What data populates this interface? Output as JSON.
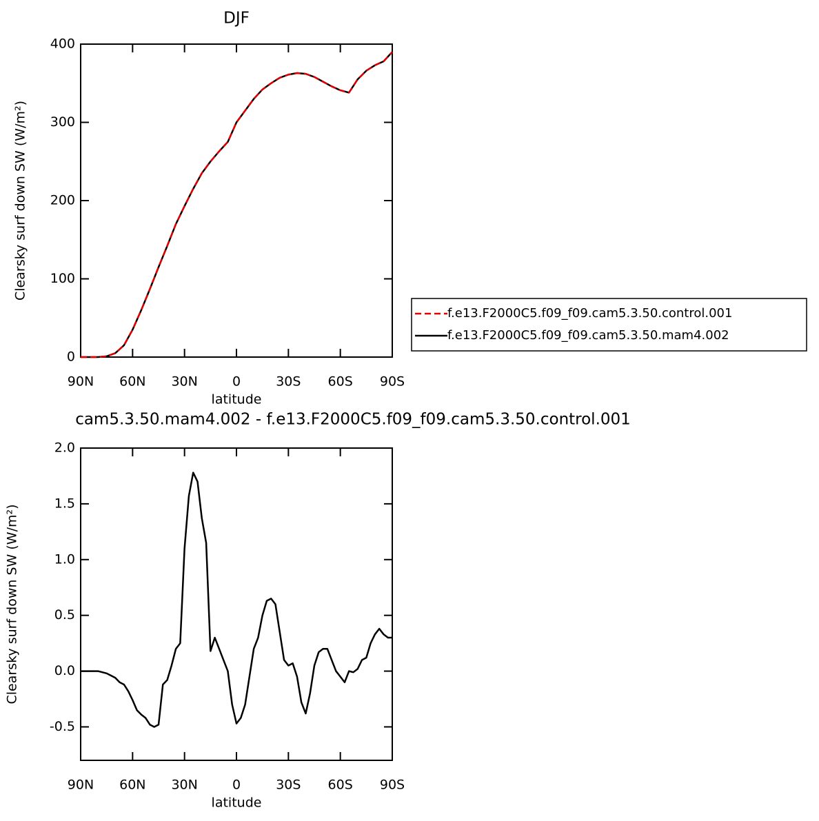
{
  "chart_data": [
    {
      "type": "line",
      "title": "DJF",
      "xlabel": "latitude",
      "ylabel": "Clearsky surf down SW (W/m²)",
      "x": [
        90,
        85,
        80,
        75,
        70,
        65,
        60,
        55,
        50,
        45,
        40,
        35,
        30,
        25,
        20,
        15,
        10,
        5,
        0,
        -5,
        -10,
        -15,
        -20,
        -25,
        -30,
        -35,
        -40,
        -45,
        -50,
        -55,
        -60,
        -65,
        -70,
        -75,
        -80,
        -85,
        -90
      ],
      "xlim": [
        90,
        -90
      ],
      "xticks": [
        {
          "value": 90,
          "label": "90N"
        },
        {
          "value": 60,
          "label": "60N"
        },
        {
          "value": 30,
          "label": "30N"
        },
        0,
        {
          "value": -30,
          "label": "30S"
        },
        {
          "value": -60,
          "label": "60S"
        },
        {
          "value": -90,
          "label": "90S"
        }
      ],
      "ylim": [
        0,
        400
      ],
      "yticks": [
        0,
        100,
        200,
        300,
        400
      ],
      "legend": "right",
      "series": [
        {
          "name": "f.e13.F2000C5.f09_f09.cam5.3.50.control.001",
          "color": "#e00000",
          "linestyle": "dashed",
          "values": [
            0,
            0,
            0,
            1,
            5,
            15,
            35,
            60,
            87,
            115,
            142,
            170,
            193,
            215,
            235,
            250,
            263,
            275,
            300,
            315,
            330,
            342,
            350,
            357,
            361,
            363,
            362,
            358,
            352,
            346,
            341,
            338,
            355,
            366,
            373,
            378,
            390
          ]
        },
        {
          "name": "f.e13.F2000C5.f09_f09.cam5.3.50.mam4.002",
          "color": "#000000",
          "linestyle": "solid",
          "values": [
            0,
            0,
            0,
            1,
            5,
            15,
            35,
            60,
            87,
            115,
            142,
            170,
            193,
            215,
            235,
            250,
            263,
            275,
            300,
            315,
            330,
            342,
            350,
            357,
            361,
            363,
            362,
            358,
            352,
            346,
            341,
            338,
            355,
            366,
            373,
            378,
            390
          ]
        }
      ]
    },
    {
      "type": "line",
      "title": "cam5.3.50.mam4.002 - f.e13.F2000C5.f09_f09.cam5.3.50.control.001",
      "xlabel": "latitude",
      "ylabel": "Clearsky surf down SW (W/m²)",
      "x": [
        90,
        87.5,
        85,
        82.5,
        80,
        77.5,
        75,
        72.5,
        70,
        67.5,
        65,
        62.5,
        60,
        57.5,
        55,
        52.5,
        50,
        47.5,
        45,
        42.5,
        40,
        37.5,
        35,
        32.5,
        30,
        27.5,
        25,
        22.5,
        20,
        17.5,
        15,
        12.5,
        10,
        7.5,
        5,
        2.5,
        0,
        -2.5,
        -5,
        -7.5,
        -10,
        -12.5,
        -15,
        -17.5,
        -20,
        -22.5,
        -25,
        -27.5,
        -30,
        -32.5,
        -35,
        -37.5,
        -40,
        -42.5,
        -45,
        -47.5,
        -50,
        -52.5,
        -55,
        -57.5,
        -60,
        -62.5,
        -65,
        -67.5,
        -70,
        -72.5,
        -75,
        -77.5,
        -80,
        -82.5,
        -85,
        -87.5,
        -90
      ],
      "xlim": [
        90,
        -90
      ],
      "xticks": [
        {
          "value": 90,
          "label": "90N"
        },
        {
          "value": 60,
          "label": "60N"
        },
        {
          "value": 30,
          "label": "30N"
        },
        0,
        {
          "value": -30,
          "label": "30S"
        },
        {
          "value": -60,
          "label": "60S"
        },
        {
          "value": -90,
          "label": "90S"
        }
      ],
      "ylim": [
        -0.8,
        2.0
      ],
      "yticks": [
        -0.5,
        {
          "value": 0,
          "label": "0.0"
        },
        0.5,
        {
          "value": 1,
          "label": "1.0"
        },
        1.5,
        {
          "value": 2,
          "label": "2.0"
        }
      ],
      "series": [
        {
          "color": "#000000",
          "linestyle": "solid",
          "values": [
            0,
            0,
            0,
            0,
            0,
            -0.01,
            -0.02,
            -0.04,
            -0.06,
            -0.1,
            -0.12,
            -0.18,
            -0.26,
            -0.35,
            -0.39,
            -0.42,
            -0.48,
            -0.5,
            -0.48,
            -0.12,
            -0.08,
            0.05,
            0.2,
            0.25,
            1.1,
            1.57,
            1.78,
            1.7,
            1.37,
            1.15,
            0.18,
            0.3,
            0.2,
            0.1,
            0,
            -0.3,
            -0.47,
            -0.42,
            -0.3,
            -0.05,
            0.2,
            0.3,
            0.5,
            0.63,
            0.65,
            0.6,
            0.35,
            0.1,
            0.05,
            0.07,
            -0.05,
            -0.28,
            -0.38,
            -0.2,
            0.05,
            0.17,
            0.2,
            0.2,
            0.1,
            0,
            -0.05,
            -0.1,
            0,
            -0.01,
            0.02,
            0.1,
            0.12,
            0.25,
            0.33,
            0.38,
            0.33,
            0.3,
            0.3
          ]
        }
      ]
    }
  ]
}
